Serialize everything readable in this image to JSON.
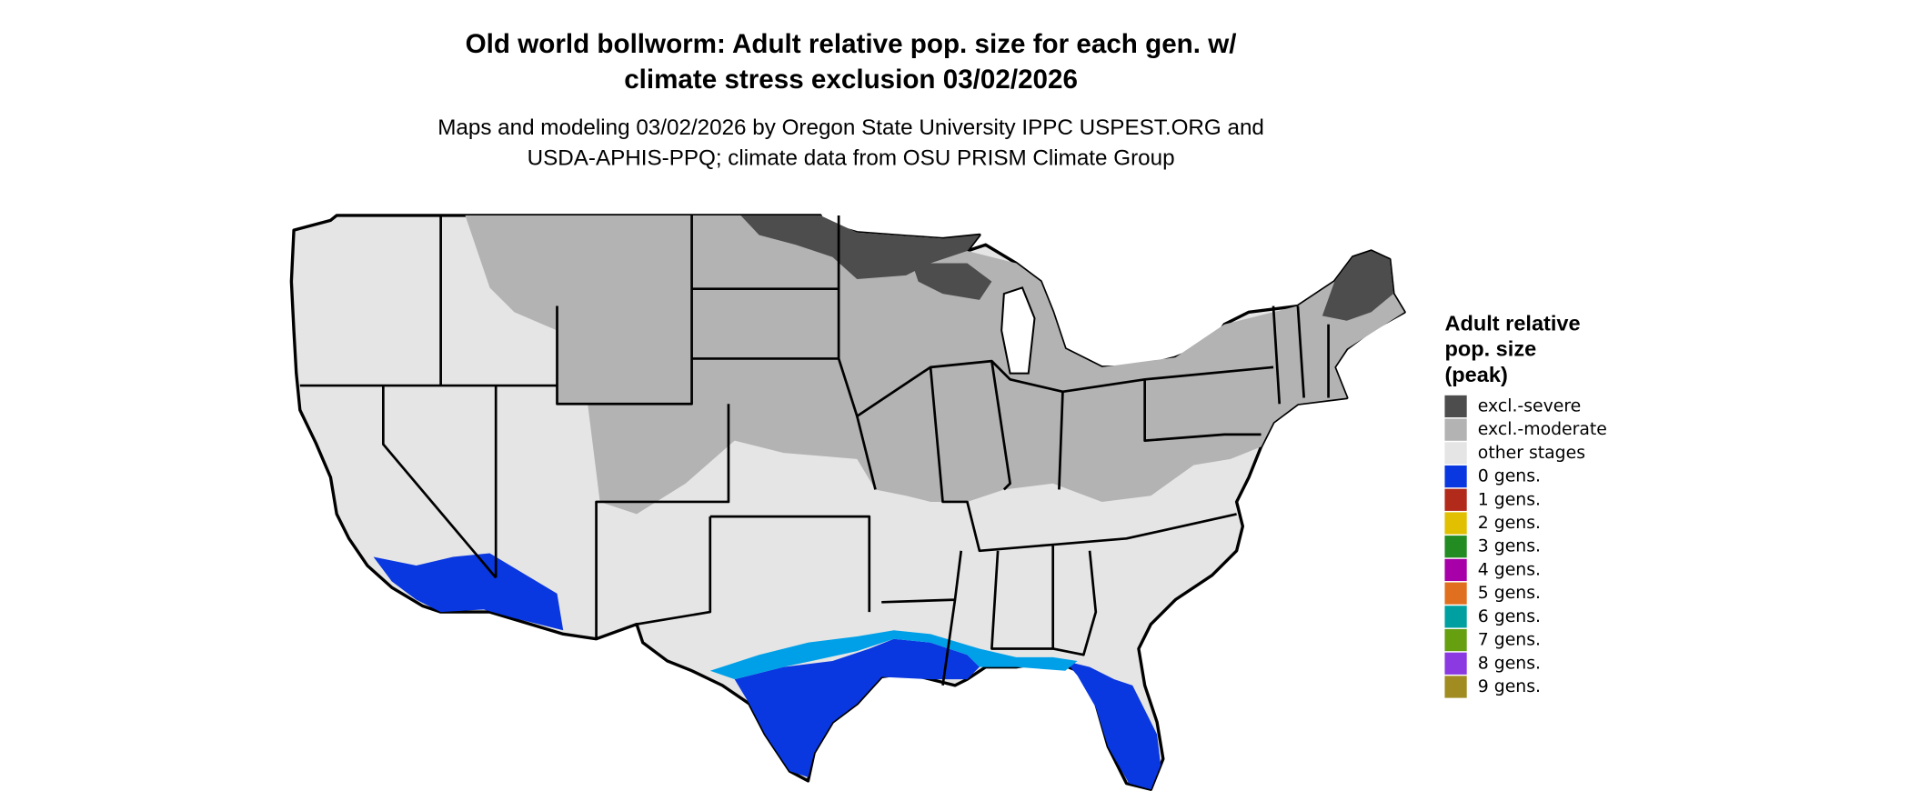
{
  "title": [
    "Old world bollworm: Adult relative pop. size for each gen. w/",
    "climate stress exclusion 03/02/2026"
  ],
  "subtitle": [
    "Maps and modeling 03/02/2026 by Oregon State University IPPC USPEST.ORG and",
    "USDA-APHIS-PPQ; climate data from OSU PRISM Climate Group"
  ],
  "legend": {
    "title": [
      "Adult relative",
      "pop. size",
      "(peak)"
    ],
    "items": [
      {
        "label": "excl.-severe",
        "color": "#4d4d4d"
      },
      {
        "label": "excl.-moderate",
        "color": "#b3b3b3"
      },
      {
        "label": "other stages",
        "color": "#e5e5e5"
      },
      {
        "label": "0 gens.",
        "color": "#0a38e0"
      },
      {
        "label": "1 gens.",
        "color": "#b22a1a"
      },
      {
        "label": "2 gens.",
        "color": "#e0c000"
      },
      {
        "label": "3 gens.",
        "color": "#228b22"
      },
      {
        "label": "4 gens.",
        "color": "#a800a8"
      },
      {
        "label": "5 gens.",
        "color": "#e07020"
      },
      {
        "label": "6 gens.",
        "color": "#00a0a0"
      },
      {
        "label": "7 gens.",
        "color": "#66a010"
      },
      {
        "label": "8 gens.",
        "color": "#8a3ae0"
      },
      {
        "label": "9 gens.",
        "color": "#a08c20"
      }
    ]
  }
}
